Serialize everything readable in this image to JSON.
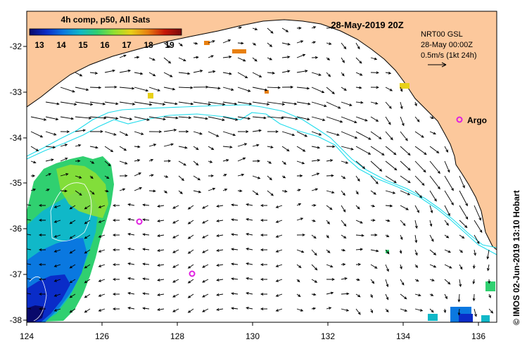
{
  "title": {
    "product": "4h comp, p50, All Sats",
    "date": "28-May-2019 20Z"
  },
  "colorbar": {
    "ticks": [
      "13",
      "14",
      "15",
      "16",
      "17",
      "18",
      "19"
    ],
    "stops": [
      "#08086b",
      "#0a2cc8",
      "#0a78e0",
      "#10b8c8",
      "#30d070",
      "#90e030",
      "#e8d018",
      "#e88010",
      "#c81808",
      "#7a0a0a"
    ]
  },
  "legend": {
    "product_code": "NRT00 GSL",
    "valid_time": "28-May 00:00Z",
    "scale": "0.5m/s (1kt 24h)"
  },
  "credit": "© IMOS 02-Jun-2019 13:10 Hobart",
  "argo_label": "Argo",
  "axes": {
    "lon_ticks": [
      "124",
      "126",
      "128",
      "130",
      "132",
      "134",
      "136"
    ],
    "lat_ticks": [
      "-32",
      "-33",
      "-34",
      "-35",
      "-36",
      "-37",
      "-38"
    ]
  },
  "colors": {
    "land": "#fcc89c",
    "shelf_contour": "#20dcec",
    "argo": "#e020e0",
    "sst_contour": "#ffffff"
  }
}
